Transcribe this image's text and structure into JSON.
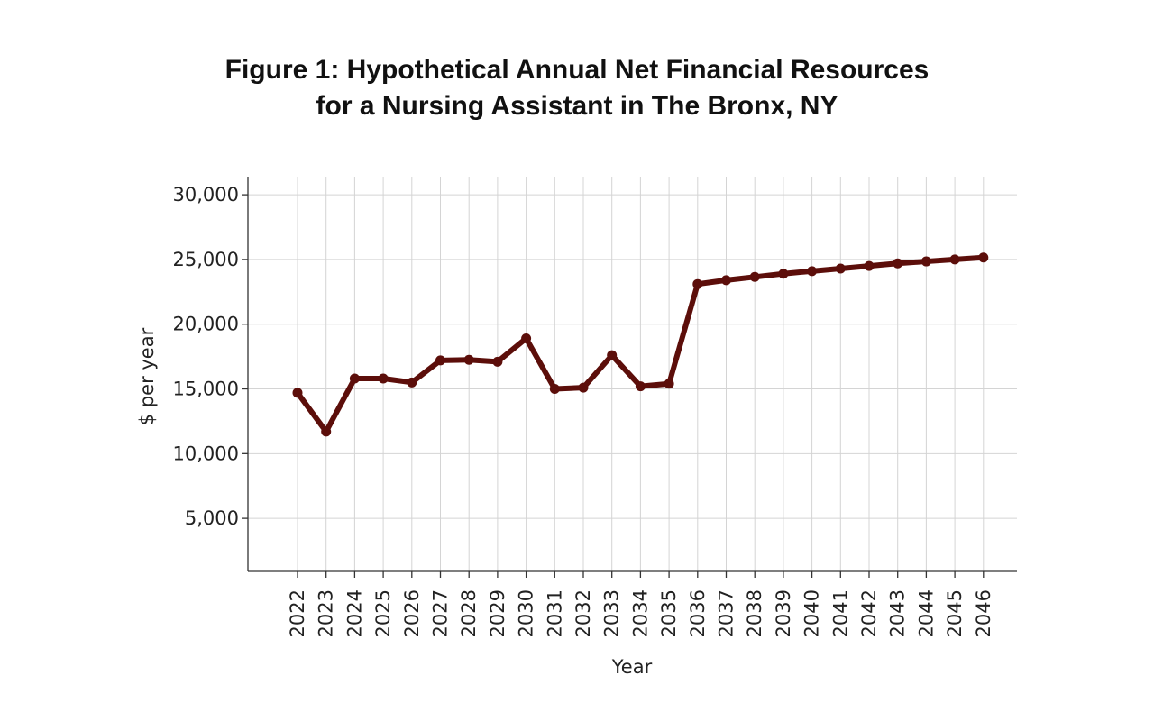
{
  "chart_data": {
    "type": "line",
    "title": "Figure 1: Hypothetical Annual Net Financial Resources for a Nursing Assistant in The Bronx, NY",
    "title_lines": [
      "Figure 1: Hypothetical Annual Net Financial Resources",
      "for a Nursing Assistant in The Bronx, NY"
    ],
    "xlabel": "Year",
    "ylabel": "$ per year",
    "x": [
      "2022",
      "2023",
      "2024",
      "2025",
      "2026",
      "2027",
      "2028",
      "2029",
      "2030",
      "2031",
      "2032",
      "2033",
      "2034",
      "2035",
      "2036",
      "2037",
      "2038",
      "2039",
      "2040",
      "2041",
      "2042",
      "2043",
      "2044",
      "2045",
      "2046"
    ],
    "series": [
      {
        "values": [
          14700,
          11700,
          15800,
          15800,
          15500,
          17200,
          17250,
          17100,
          18900,
          15000,
          15100,
          17600,
          15200,
          15400,
          23100,
          23400,
          23650,
          23900,
          24100,
          24300,
          24500,
          24700,
          24850,
          25000,
          25150
        ],
        "color": "#5c0e0a"
      }
    ],
    "yticks": [
      5000,
      10000,
      15000,
      20000,
      25000,
      30000
    ],
    "ytick_labels": [
      "5,000",
      "10,000",
      "15,000",
      "20,000",
      "25,000",
      "30,000"
    ],
    "ylim": [
      900,
      31400
    ],
    "grid": true
  }
}
